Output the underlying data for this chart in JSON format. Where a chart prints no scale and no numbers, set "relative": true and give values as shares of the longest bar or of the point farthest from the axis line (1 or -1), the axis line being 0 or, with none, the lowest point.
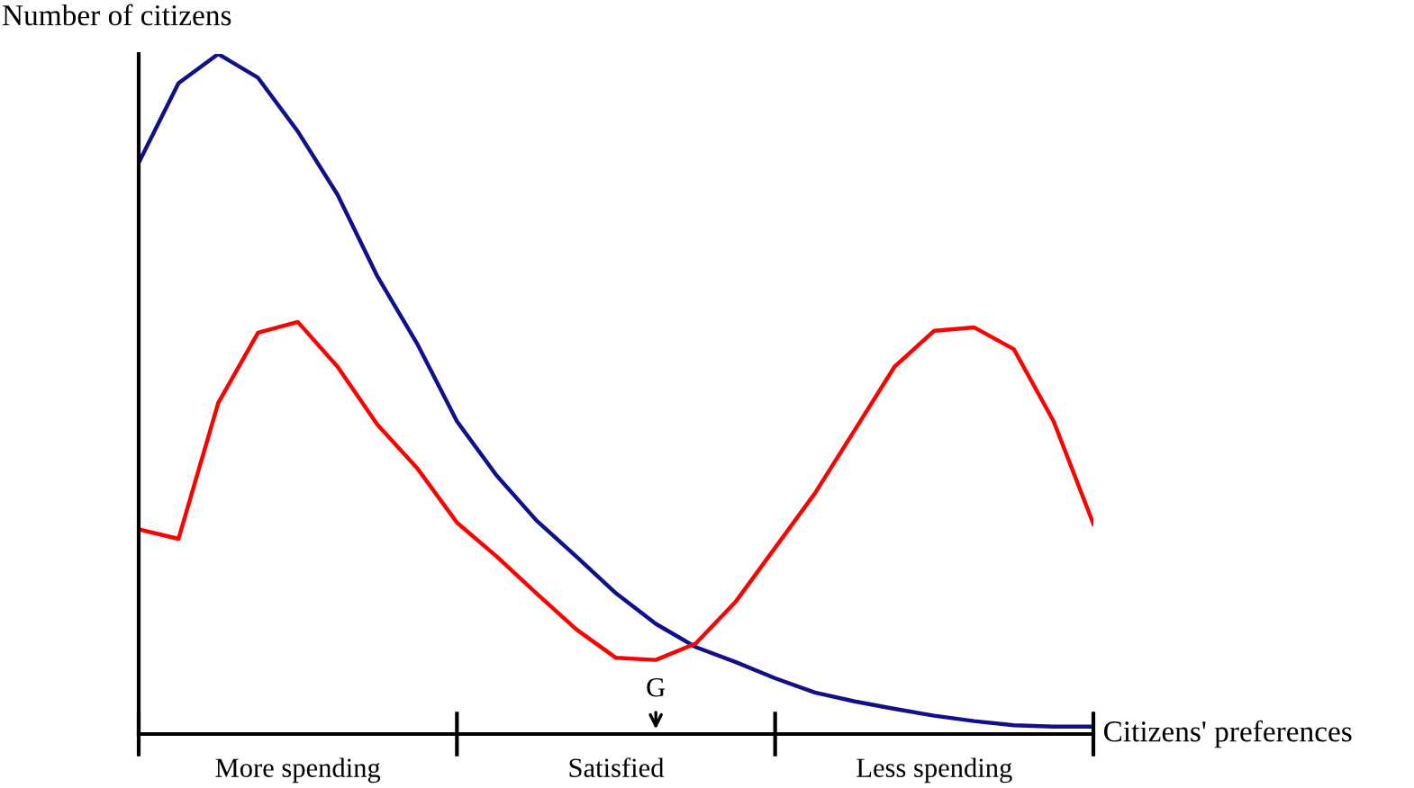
{
  "chart_data": {
    "type": "line",
    "relative": true,
    "ylabel": "Number of citizens",
    "xlabel": "Citizens' preferences",
    "categories": [
      null,
      null,
      null,
      null,
      null,
      null,
      null,
      null,
      null,
      null,
      null,
      null,
      null,
      null,
      null,
      null,
      null,
      null,
      null,
      null,
      null,
      null,
      null,
      null,
      null
    ],
    "series": [
      {
        "color": "#10108a",
        "values": [
          0.84,
          0.957,
          1.0,
          0.965,
          0.886,
          0.793,
          0.673,
          0.574,
          0.46,
          0.38,
          0.314,
          0.261,
          0.207,
          0.162,
          0.128,
          0.106,
          0.082,
          0.061,
          0.048,
          0.037,
          0.027,
          0.019,
          0.013,
          0.011,
          0.011
        ]
      },
      {
        "color": "#ff0000",
        "values": [
          0.301,
          0.287,
          0.487,
          0.59,
          0.606,
          0.54,
          0.455,
          0.391,
          0.311,
          0.261,
          0.207,
          0.154,
          0.112,
          0.109,
          0.133,
          0.194,
          0.274,
          0.354,
          0.447,
          0.54,
          0.593,
          0.598,
          0.566,
          0.46,
          0.309
        ]
      }
    ],
    "annotations": [
      "More spending",
      "Satisfied",
      "Less spending",
      "G"
    ],
    "legend": false,
    "marker": "none",
    "line_style": "solid"
  }
}
